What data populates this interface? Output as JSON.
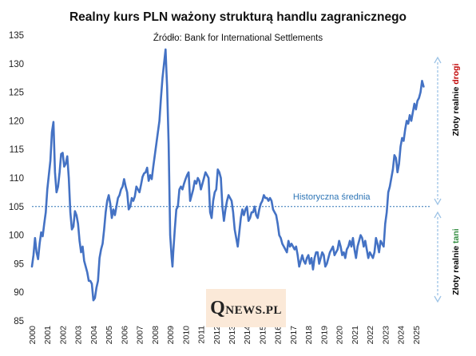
{
  "title": "Realny kurs PLN ważony strukturą handlu zagranicznego",
  "subtitle": "Źródło: Bank for International Settlements",
  "watermark": {
    "first": "Q",
    "rest": "NEWS.PL"
  },
  "colors": {
    "series": "#4472c4",
    "reference_line": "#2e75b6",
    "reference_label": "#2e75b6",
    "axis_text": "#222222",
    "arrow": "#9dc3e6",
    "side_text": "#000000",
    "expensive_word": "#c00000",
    "cheap_word": "#2e8b3d",
    "watermark_bg": "#fbe9d8"
  },
  "chart_data": {
    "type": "line",
    "title": "Realny kurs PLN ważony strukturą handlu zagranicznego",
    "subtitle": "Źródło: Bank for International Settlements",
    "xlabel": "",
    "ylabel": "",
    "xlim": [
      2000,
      2026
    ],
    "ylim": [
      85,
      135
    ],
    "x_ticks": [
      "2000",
      "2001",
      "2002",
      "2003",
      "2004",
      "2005",
      "2006",
      "2007",
      "2008",
      "2009",
      "2010",
      "2011",
      "2012",
      "2013",
      "2014",
      "2015",
      "2016",
      "2017",
      "2018",
      "2019",
      "2020",
      "2021",
      "2022",
      "2023",
      "2024",
      "2025"
    ],
    "y_ticks": [
      85,
      90,
      95,
      100,
      105,
      110,
      115,
      120,
      125,
      130,
      135
    ],
    "grid": false,
    "legend": "none",
    "reference_line": {
      "value": 105,
      "label": "Historyczna średnia"
    },
    "side_annotations": {
      "upper": {
        "prefix": "Złoty realnie ",
        "word": "drogi"
      },
      "lower": {
        "prefix": "Złoty realnie ",
        "word": "tani"
      }
    },
    "series": [
      {
        "points": [
          [
            2000.0,
            94.5
          ],
          [
            2000.1,
            96.5
          ],
          [
            2000.2,
            99.5
          ],
          [
            2000.3,
            97.0
          ],
          [
            2000.4,
            95.8
          ],
          [
            2000.5,
            98.5
          ],
          [
            2000.6,
            100.5
          ],
          [
            2000.7,
            99.8
          ],
          [
            2000.8,
            102.0
          ],
          [
            2000.9,
            104.0
          ],
          [
            2001.0,
            108.0
          ],
          [
            2001.1,
            110.5
          ],
          [
            2001.2,
            113.0
          ],
          [
            2001.3,
            118.0
          ],
          [
            2001.4,
            119.8
          ],
          [
            2001.5,
            111.0
          ],
          [
            2001.6,
            107.5
          ],
          [
            2001.7,
            108.5
          ],
          [
            2001.8,
            111.0
          ],
          [
            2001.9,
            114.2
          ],
          [
            2002.0,
            114.4
          ],
          [
            2002.1,
            112.0
          ],
          [
            2002.2,
            112.5
          ],
          [
            2002.3,
            113.8
          ],
          [
            2002.4,
            110.0
          ],
          [
            2002.5,
            104.0
          ],
          [
            2002.6,
            101.0
          ],
          [
            2002.7,
            101.5
          ],
          [
            2002.8,
            104.2
          ],
          [
            2002.9,
            103.5
          ],
          [
            2003.0,
            102.0
          ],
          [
            2003.1,
            99.0
          ],
          [
            2003.2,
            97.0
          ],
          [
            2003.3,
            98.0
          ],
          [
            2003.4,
            95.5
          ],
          [
            2003.5,
            94.5
          ],
          [
            2003.6,
            93.5
          ],
          [
            2003.7,
            92.0
          ],
          [
            2003.8,
            92.0
          ],
          [
            2003.9,
            91.5
          ],
          [
            2004.0,
            88.6
          ],
          [
            2004.1,
            89.0
          ],
          [
            2004.2,
            90.8
          ],
          [
            2004.3,
            92.0
          ],
          [
            2004.4,
            96.0
          ],
          [
            2004.5,
            97.5
          ],
          [
            2004.6,
            98.5
          ],
          [
            2004.7,
            101.0
          ],
          [
            2004.8,
            104.0
          ],
          [
            2004.9,
            106.0
          ],
          [
            2005.0,
            107.0
          ],
          [
            2005.1,
            105.5
          ],
          [
            2005.2,
            103.0
          ],
          [
            2005.3,
            104.5
          ],
          [
            2005.4,
            103.5
          ],
          [
            2005.5,
            105.0
          ],
          [
            2005.6,
            106.5
          ],
          [
            2005.7,
            107.0
          ],
          [
            2005.8,
            108.0
          ],
          [
            2005.9,
            108.5
          ],
          [
            2006.0,
            109.8
          ],
          [
            2006.1,
            108.5
          ],
          [
            2006.2,
            107.5
          ],
          [
            2006.3,
            104.5
          ],
          [
            2006.4,
            105.0
          ],
          [
            2006.5,
            106.5
          ],
          [
            2006.6,
            106.0
          ],
          [
            2006.7,
            106.8
          ],
          [
            2006.8,
            108.5
          ],
          [
            2006.9,
            108.0
          ],
          [
            2007.0,
            107.5
          ],
          [
            2007.1,
            108.8
          ],
          [
            2007.2,
            110.2
          ],
          [
            2007.3,
            110.8
          ],
          [
            2007.4,
            111.0
          ],
          [
            2007.5,
            111.8
          ],
          [
            2007.6,
            109.5
          ],
          [
            2007.7,
            110.5
          ],
          [
            2007.8,
            109.8
          ],
          [
            2007.9,
            112.0
          ],
          [
            2008.0,
            114.0
          ],
          [
            2008.1,
            116.0
          ],
          [
            2008.2,
            118.0
          ],
          [
            2008.3,
            120.0
          ],
          [
            2008.4,
            124.0
          ],
          [
            2008.5,
            127.5
          ],
          [
            2008.6,
            130.0
          ],
          [
            2008.7,
            132.5
          ],
          [
            2008.75,
            129.0
          ],
          [
            2008.8,
            126.0
          ],
          [
            2008.9,
            116.0
          ],
          [
            2009.0,
            100.0
          ],
          [
            2009.1,
            96.0
          ],
          [
            2009.15,
            94.5
          ],
          [
            2009.2,
            97.0
          ],
          [
            2009.3,
            101.0
          ],
          [
            2009.4,
            104.5
          ],
          [
            2009.5,
            105.0
          ],
          [
            2009.6,
            108.0
          ],
          [
            2009.7,
            108.5
          ],
          [
            2009.8,
            108.0
          ],
          [
            2009.9,
            109.0
          ],
          [
            2010.0,
            109.8
          ],
          [
            2010.1,
            110.5
          ],
          [
            2010.2,
            111.0
          ],
          [
            2010.3,
            106.0
          ],
          [
            2010.4,
            107.0
          ],
          [
            2010.5,
            108.0
          ],
          [
            2010.6,
            109.5
          ],
          [
            2010.7,
            109.0
          ],
          [
            2010.8,
            110.0
          ],
          [
            2010.9,
            109.5
          ],
          [
            2011.0,
            108.0
          ],
          [
            2011.1,
            109.0
          ],
          [
            2011.2,
            110.0
          ],
          [
            2011.3,
            111.0
          ],
          [
            2011.4,
            110.5
          ],
          [
            2011.5,
            110.0
          ],
          [
            2011.6,
            104.0
          ],
          [
            2011.7,
            103.0
          ],
          [
            2011.8,
            106.0
          ],
          [
            2011.9,
            107.5
          ],
          [
            2012.0,
            108.0
          ],
          [
            2012.1,
            111.5
          ],
          [
            2012.2,
            111.0
          ],
          [
            2012.3,
            110.0
          ],
          [
            2012.4,
            105.0
          ],
          [
            2012.5,
            102.5
          ],
          [
            2012.6,
            104.5
          ],
          [
            2012.7,
            106.0
          ],
          [
            2012.8,
            107.0
          ],
          [
            2012.9,
            106.5
          ],
          [
            2013.0,
            106.0
          ],
          [
            2013.1,
            104.0
          ],
          [
            2013.2,
            101.0
          ],
          [
            2013.3,
            99.5
          ],
          [
            2013.4,
            98.0
          ],
          [
            2013.5,
            100.5
          ],
          [
            2013.6,
            103.0
          ],
          [
            2013.7,
            104.5
          ],
          [
            2013.8,
            103.5
          ],
          [
            2013.9,
            104.5
          ],
          [
            2014.0,
            105.0
          ],
          [
            2014.1,
            102.5
          ],
          [
            2014.2,
            103.0
          ],
          [
            2014.3,
            104.0
          ],
          [
            2014.4,
            104.0
          ],
          [
            2014.5,
            105.0
          ],
          [
            2014.6,
            103.5
          ],
          [
            2014.7,
            103.0
          ],
          [
            2014.8,
            104.5
          ],
          [
            2014.9,
            105.5
          ],
          [
            2015.0,
            106.0
          ],
          [
            2015.1,
            107.0
          ],
          [
            2015.2,
            106.5
          ],
          [
            2015.3,
            106.5
          ],
          [
            2015.4,
            106.0
          ],
          [
            2015.5,
            106.5
          ],
          [
            2015.6,
            106.0
          ],
          [
            2015.7,
            104.5
          ],
          [
            2015.8,
            104.0
          ],
          [
            2015.9,
            103.5
          ],
          [
            2016.0,
            102.0
          ],
          [
            2016.1,
            100.0
          ],
          [
            2016.2,
            99.5
          ],
          [
            2016.3,
            98.5
          ],
          [
            2016.4,
            98.0
          ],
          [
            2016.5,
            97.5
          ],
          [
            2016.6,
            97.0
          ],
          [
            2016.7,
            99.0
          ],
          [
            2016.8,
            98.0
          ],
          [
            2016.9,
            98.5
          ],
          [
            2017.0,
            98.0
          ],
          [
            2017.1,
            97.5
          ],
          [
            2017.2,
            98.0
          ],
          [
            2017.3,
            96.5
          ],
          [
            2017.4,
            94.5
          ],
          [
            2017.5,
            95.5
          ],
          [
            2017.6,
            96.5
          ],
          [
            2017.7,
            95.5
          ],
          [
            2017.8,
            95.0
          ],
          [
            2017.9,
            96.0
          ],
          [
            2018.0,
            96.5
          ],
          [
            2018.1,
            95.0
          ],
          [
            2018.2,
            96.0
          ],
          [
            2018.3,
            94.0
          ],
          [
            2018.4,
            96.0
          ],
          [
            2018.5,
            97.0
          ],
          [
            2018.6,
            97.0
          ],
          [
            2018.7,
            95.0
          ],
          [
            2018.8,
            96.0
          ],
          [
            2018.9,
            97.0
          ],
          [
            2019.0,
            96.5
          ],
          [
            2019.1,
            94.5
          ],
          [
            2019.2,
            95.0
          ],
          [
            2019.3,
            96.0
          ],
          [
            2019.4,
            97.0
          ],
          [
            2019.5,
            97.5
          ],
          [
            2019.6,
            98.0
          ],
          [
            2019.7,
            96.5
          ],
          [
            2019.8,
            97.0
          ],
          [
            2019.9,
            97.5
          ],
          [
            2020.0,
            99.0
          ],
          [
            2020.1,
            98.0
          ],
          [
            2020.2,
            96.5
          ],
          [
            2020.3,
            97.0
          ],
          [
            2020.4,
            96.0
          ],
          [
            2020.5,
            97.5
          ],
          [
            2020.6,
            98.0
          ],
          [
            2020.7,
            99.0
          ],
          [
            2020.8,
            98.0
          ],
          [
            2020.9,
            99.5
          ],
          [
            2021.0,
            97.5
          ],
          [
            2021.1,
            96.0
          ],
          [
            2021.2,
            98.0
          ],
          [
            2021.3,
            99.0
          ],
          [
            2021.4,
            100.0
          ],
          [
            2021.5,
            99.5
          ],
          [
            2021.6,
            98.0
          ],
          [
            2021.7,
            99.0
          ],
          [
            2021.8,
            97.5
          ],
          [
            2021.9,
            96.0
          ],
          [
            2022.0,
            97.0
          ],
          [
            2022.1,
            96.5
          ],
          [
            2022.2,
            96.0
          ],
          [
            2022.3,
            97.0
          ],
          [
            2022.4,
            99.5
          ],
          [
            2022.5,
            98.5
          ],
          [
            2022.6,
            97.0
          ],
          [
            2022.7,
            99.0
          ],
          [
            2022.8,
            98.5
          ],
          [
            2022.9,
            98.0
          ],
          [
            2023.0,
            102.0
          ],
          [
            2023.1,
            104.0
          ],
          [
            2023.2,
            107.5
          ],
          [
            2023.3,
            108.5
          ],
          [
            2023.4,
            110.0
          ],
          [
            2023.5,
            111.5
          ],
          [
            2023.6,
            114.0
          ],
          [
            2023.7,
            113.5
          ],
          [
            2023.8,
            111.0
          ],
          [
            2023.9,
            112.5
          ],
          [
            2024.0,
            115.5
          ],
          [
            2024.1,
            117.0
          ],
          [
            2024.2,
            116.5
          ],
          [
            2024.3,
            118.5
          ],
          [
            2024.4,
            120.0
          ],
          [
            2024.5,
            119.5
          ],
          [
            2024.6,
            121.0
          ],
          [
            2024.7,
            120.0
          ],
          [
            2024.8,
            121.5
          ],
          [
            2024.9,
            123.0
          ],
          [
            2025.0,
            122.0
          ],
          [
            2025.1,
            123.5
          ],
          [
            2025.2,
            124.0
          ],
          [
            2025.3,
            125.0
          ],
          [
            2025.4,
            127.0
          ],
          [
            2025.5,
            126.0
          ]
        ]
      }
    ]
  }
}
